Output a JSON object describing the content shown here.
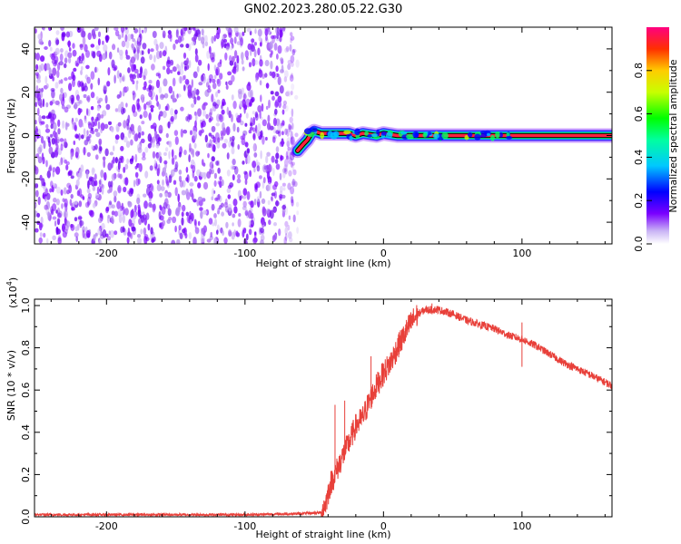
{
  "title": "GN02.2023.280.05.22.G30",
  "chart_data": [
    {
      "type": "heatmap",
      "xlabel": "Height of straight line (km)",
      "ylabel": "Frequency (Hz)",
      "xlim": [
        -252,
        165
      ],
      "ylim": [
        -50,
        50
      ],
      "xticks": [
        -200,
        -100,
        0,
        100
      ],
      "yticks": [
        -40,
        -20,
        0,
        20,
        40
      ],
      "colorbar": {
        "label": "Normalized spectral amplitude",
        "range": [
          0,
          1
        ],
        "ticks": [
          "0.0",
          "0.2",
          "0.4",
          "0.6",
          "0.8"
        ]
      },
      "noise_region_x": [
        -252,
        -62
      ],
      "signal_trace": {
        "x": [
          -62,
          -58,
          -55,
          -52,
          -50,
          -45,
          -35,
          -25,
          -20,
          -15,
          -5,
          0,
          10,
          20,
          30,
          40,
          60,
          90,
          120,
          165
        ],
        "y": [
          -7,
          -4,
          -2,
          1,
          2,
          1,
          1,
          1,
          0,
          1,
          0,
          1,
          0,
          0,
          0,
          0,
          0,
          0,
          0,
          0
        ]
      }
    },
    {
      "type": "line",
      "xlabel": "Height of straight line (km)",
      "ylabel": "SNR (10 * v/v)",
      "multiplier": "(x10",
      "multiplier_exp": "4",
      "multiplier_close": ")",
      "xlim": [
        -252,
        165
      ],
      "ylim": [
        0,
        1.03
      ],
      "xticks": [
        -200,
        -100,
        0,
        100
      ],
      "yticks": [
        0.0,
        0.2,
        0.4,
        0.6,
        0.8,
        1.0
      ],
      "ytick_labels": [
        "0.0",
        "0.2",
        "0.4",
        "0.6",
        "0.8",
        "1.0"
      ],
      "color": "#e8403a",
      "series": [
        {
          "x": [
            -252,
            -200,
            -100,
            -60,
            -45,
            -42,
            -38,
            -35,
            -30,
            -25,
            -20,
            -15,
            -10,
            -5,
            0,
            5,
            10,
            15,
            20,
            25,
            30,
            35,
            40,
            50,
            60,
            70,
            80,
            90,
            95,
            100,
            110,
            120,
            130,
            140,
            150,
            165
          ],
          "y": [
            0.01,
            0.01,
            0.01,
            0.015,
            0.02,
            0.06,
            0.16,
            0.2,
            0.28,
            0.35,
            0.43,
            0.47,
            0.55,
            0.62,
            0.68,
            0.73,
            0.8,
            0.86,
            0.92,
            0.96,
            0.98,
            0.98,
            0.98,
            0.96,
            0.93,
            0.91,
            0.89,
            0.86,
            0.85,
            0.84,
            0.81,
            0.77,
            0.73,
            0.7,
            0.67,
            0.62
          ]
        }
      ],
      "spikes": [
        {
          "x": -35,
          "y": 0.53
        },
        {
          "x": -28,
          "y": 0.55
        },
        {
          "x": -9,
          "y": 0.76
        },
        {
          "x": 35,
          "y": 1.01
        },
        {
          "x": 100,
          "y": 0.92
        },
        {
          "x": 100,
          "y": 0.71
        }
      ]
    }
  ]
}
